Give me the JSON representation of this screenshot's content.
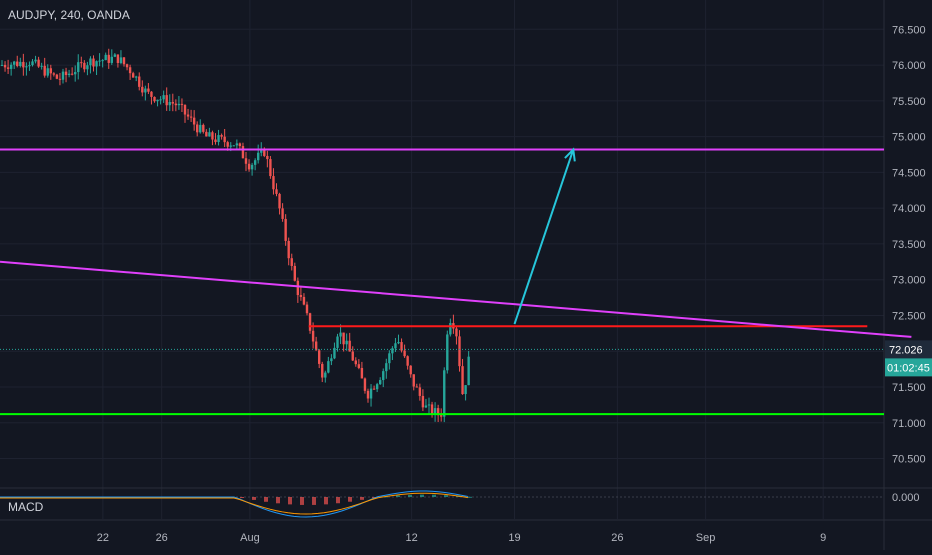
{
  "header": {
    "symbol_line": "AUDJPY, 240, OANDA"
  },
  "price_badge": {
    "value": "72.026",
    "countdown": "01:02:45"
  },
  "macd": {
    "label": "MACD",
    "zero_label": "0.000"
  },
  "colors": {
    "background": "#131722",
    "grid": "#1e2230",
    "axis_text": "#b2b5be",
    "bull": "#26a69a",
    "bear": "#ef5350",
    "resistance": "#e040fb",
    "trendline": "#e040fb",
    "neckline": "#ff1a1a",
    "support": "#00ff00",
    "arrow": "#26c6da",
    "badge_price": "#1f2a3a",
    "badge_time": "#26a69a"
  },
  "chart_data": {
    "type": "candlestick",
    "title": "AUDJPY, 240, OANDA",
    "ylim": [
      70.2,
      76.7
    ],
    "y_ticks": [
      "76.500",
      "76.000",
      "75.500",
      "75.000",
      "74.500",
      "74.000",
      "73.500",
      "73.000",
      "72.500",
      "72.000",
      "71.500",
      "71.000",
      "70.500"
    ],
    "x_ticks": [
      "22",
      "26",
      "Aug",
      "12",
      "19",
      "26",
      "Sep",
      "9"
    ],
    "last_price": 72.026,
    "levels": [
      {
        "name": "resistance",
        "price": 74.82
      },
      {
        "name": "neckline",
        "price": 72.35,
        "from": "Aug 5",
        "to": "Sep 12"
      },
      {
        "name": "support",
        "price": 71.12
      }
    ],
    "trendline": {
      "start": [
        "Jul 15",
        73.25
      ],
      "end": [
        "Sep 15",
        72.2
      ]
    },
    "arrow": {
      "start": [
        "Aug 19",
        72.38
      ],
      "end": [
        "Aug 23",
        74.82
      ]
    },
    "price_path": [
      [
        "Jul 15",
        76.0
      ],
      [
        "Jul 17",
        76.05
      ],
      [
        "Jul 19",
        75.8
      ],
      [
        "Jul 21",
        76.05
      ],
      [
        "Jul 23",
        76.1
      ],
      [
        "Jul 24",
        75.9
      ],
      [
        "Jul 25",
        75.6
      ],
      [
        "Jul 27",
        75.45
      ],
      [
        "Jul 29",
        75.0
      ],
      [
        "Jul 31",
        74.9
      ],
      [
        "Aug 1",
        74.6
      ],
      [
        "Aug 2",
        74.8
      ],
      [
        "Aug 3",
        74.0
      ],
      [
        "Aug 4",
        73.0
      ],
      [
        "Aug 5",
        72.4
      ],
      [
        "Aug 6",
        71.6
      ],
      [
        "Aug 7",
        72.3
      ],
      [
        "Aug 8",
        71.9
      ],
      [
        "Aug 9",
        71.4
      ],
      [
        "Aug 10",
        71.7
      ],
      [
        "Aug 11",
        72.2
      ],
      [
        "Aug 12",
        71.6
      ],
      [
        "Aug 13",
        71.2
      ],
      [
        "Aug 14",
        71.1
      ],
      [
        "Aug 14.5",
        72.5
      ],
      [
        "Aug 15",
        72.35
      ],
      [
        "Aug 15.5",
        71.35
      ],
      [
        "Aug 16",
        72.026
      ]
    ],
    "macd": {
      "zero": 0.0
    }
  }
}
